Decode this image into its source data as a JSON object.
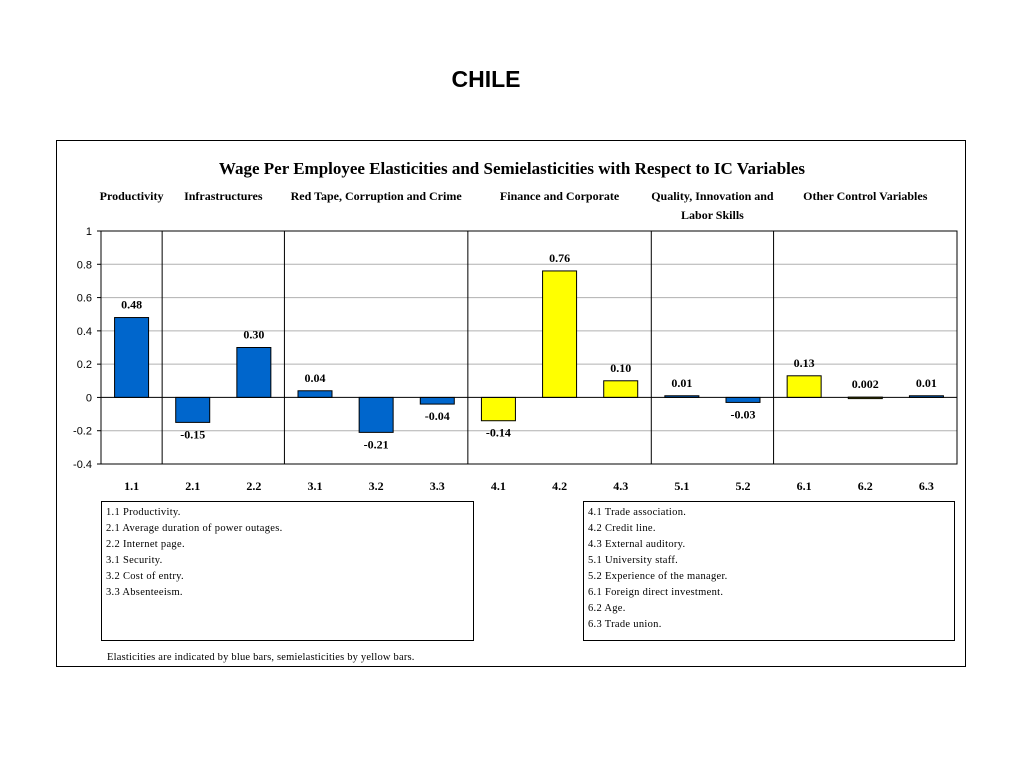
{
  "page_title": "CHILE",
  "chart_data": {
    "type": "bar",
    "title": "Wage Per Employee Elasticities and Semielasticities with Respect to IC Variables",
    "xlabel": "",
    "ylabel": "",
    "ylim": [
      -0.4,
      1
    ],
    "yticks": [
      1,
      0.8,
      0.6,
      0.4,
      0.2,
      0,
      -0.2,
      -0.4
    ],
    "ytick_labels": [
      "1",
      "0.8",
      "0.6",
      "0.4",
      "0.2",
      "0",
      "-0.2",
      "-0.4"
    ],
    "grid": true,
    "categories": [
      "1.1",
      "2.1",
      "2.2",
      "3.1",
      "3.2",
      "3.3",
      "4.1",
      "4.2",
      "4.3",
      "5.1",
      "5.2",
      "6.1",
      "6.2",
      "6.3"
    ],
    "values": [
      0.48,
      -0.15,
      0.3,
      0.04,
      -0.21,
      -0.04,
      -0.14,
      0.76,
      0.1,
      0.01,
      -0.03,
      0.13,
      0.002,
      0.01
    ],
    "value_labels": [
      "0.48",
      "-0.15",
      "0.30",
      "0.04",
      "-0.21",
      "-0.04",
      "-0.14",
      "0.76",
      "0.10",
      "0.01",
      "-0.03",
      "0.13",
      "0.002",
      "0.01"
    ],
    "bar_types": [
      "blue",
      "blue",
      "blue",
      "blue",
      "blue",
      "blue",
      "yellow",
      "yellow",
      "yellow",
      "blue",
      "blue",
      "yellow",
      "yellow",
      "blue"
    ],
    "colors": {
      "blue": "#0066cc",
      "yellow": "#ffff00",
      "outline": "#000000"
    },
    "groups": [
      {
        "label": "Productivity",
        "categories": [
          "1.1"
        ]
      },
      {
        "label": "Infrastructures",
        "categories": [
          "2.1",
          "2.2"
        ]
      },
      {
        "label": "Red Tape, Corruption and Crime",
        "categories": [
          "3.1",
          "3.2",
          "3.3"
        ]
      },
      {
        "label": "Finance and Corporate",
        "categories": [
          "4.1",
          "4.2",
          "4.3"
        ]
      },
      {
        "label": "Quality, Innovation and Labor Skills",
        "categories": [
          "5.1",
          "5.2"
        ]
      },
      {
        "label": "Other Control Variables",
        "categories": [
          "6.1",
          "6.2",
          "6.3"
        ]
      }
    ]
  },
  "legend_left": [
    "1.1 Productivity.",
    "2.1 Average duration of power outages.",
    "2.2 Internet page.",
    "3.1 Security.",
    "3.2 Cost of entry.",
    "3.3 Absenteeism."
  ],
  "legend_right": [
    "4.1 Trade association.",
    "4.2 Credit line.",
    "4.3 External auditory.",
    "5.1 University staff.",
    "5.2 Experience of the manager.",
    "6.1 Foreign direct investment.",
    "6.2 Age.",
    "6.3 Trade union."
  ],
  "note": "Elasticities are indicated by blue bars, semielasticities by yellow bars."
}
